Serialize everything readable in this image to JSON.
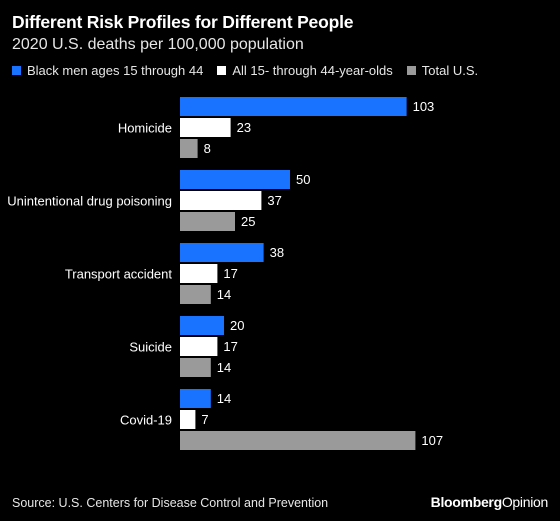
{
  "header": {
    "title": "Different Risk Profiles for Different People",
    "subtitle": "2020 U.S. deaths per 100,000 population"
  },
  "footer": {
    "source": "Source: U.S. Centers for Disease Control and Prevention",
    "brand_bold": "Bloomberg",
    "brand_regular": "Opinion"
  },
  "chart_data": {
    "type": "bar",
    "orientation": "horizontal",
    "categories": [
      "Homicide",
      "Unintentional drug poisoning",
      "Transport accident",
      "Suicide",
      "Covid-19"
    ],
    "series": [
      {
        "name": "Black men ages 15 through 44",
        "color": "#1a73ff",
        "values": [
          103,
          50,
          38,
          20,
          14
        ]
      },
      {
        "name": "All 15- through 44-year-olds",
        "color": "#ffffff",
        "values": [
          23,
          37,
          17,
          17,
          7
        ]
      },
      {
        "name": "Total U.S.",
        "color": "#9a9a9a",
        "values": [
          8,
          25,
          14,
          14,
          107
        ]
      }
    ],
    "xlim": [
      0,
      107
    ],
    "grid": false,
    "legend_position": "top-left",
    "data_labels": true
  }
}
